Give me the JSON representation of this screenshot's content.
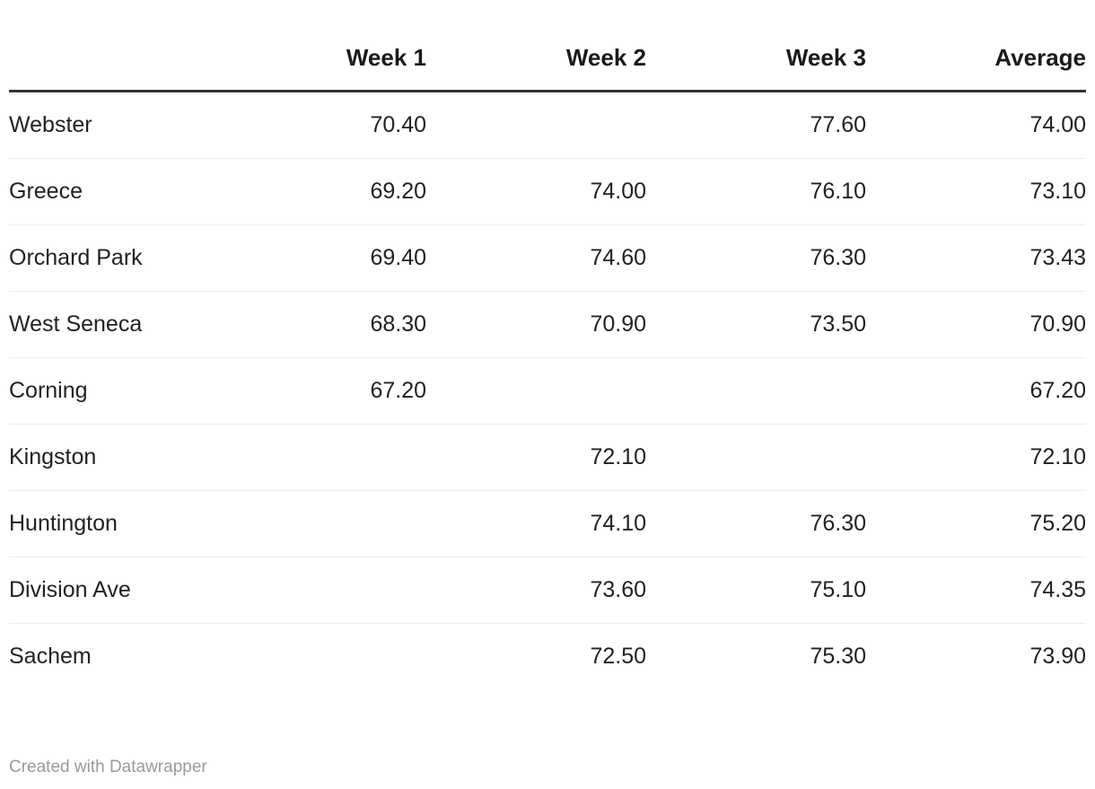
{
  "chart_data": {
    "type": "table",
    "title": "",
    "columns": [
      "",
      "Week 1",
      "Week 2",
      "Week 3",
      "Average"
    ],
    "rows": [
      {
        "label": "Webster",
        "values": [
          "70.40",
          "",
          "77.60",
          "74.00"
        ]
      },
      {
        "label": "Greece",
        "values": [
          "69.20",
          "74.00",
          "76.10",
          "73.10"
        ]
      },
      {
        "label": "Orchard Park",
        "values": [
          "69.40",
          "74.60",
          "76.30",
          "73.43"
        ]
      },
      {
        "label": "West Seneca",
        "values": [
          "68.30",
          "70.90",
          "73.50",
          "70.90"
        ]
      },
      {
        "label": "Corning",
        "values": [
          "67.20",
          "",
          "",
          "67.20"
        ]
      },
      {
        "label": "Kingston",
        "values": [
          "",
          "72.10",
          "",
          "72.10"
        ]
      },
      {
        "label": "Huntington",
        "values": [
          "",
          "74.10",
          "76.30",
          "75.20"
        ]
      },
      {
        "label": "Division Ave",
        "values": [
          "",
          "73.60",
          "75.10",
          "74.35"
        ]
      },
      {
        "label": "Sachem",
        "values": [
          "",
          "72.50",
          "75.30",
          "73.90"
        ]
      }
    ],
    "layout": {
      "numeric_alignment": "right",
      "header_rule": true,
      "row_dividers": true,
      "legend_position": "none",
      "grid": "horizontal-only"
    }
  },
  "footer": {
    "attribution": "Created with Datawrapper"
  },
  "colors": {
    "text": "#222222",
    "header_text": "#1a1a1a",
    "header_rule": "#333333",
    "row_divider": "#ececec",
    "attribution": "#9a9a9a",
    "background": "#ffffff"
  }
}
